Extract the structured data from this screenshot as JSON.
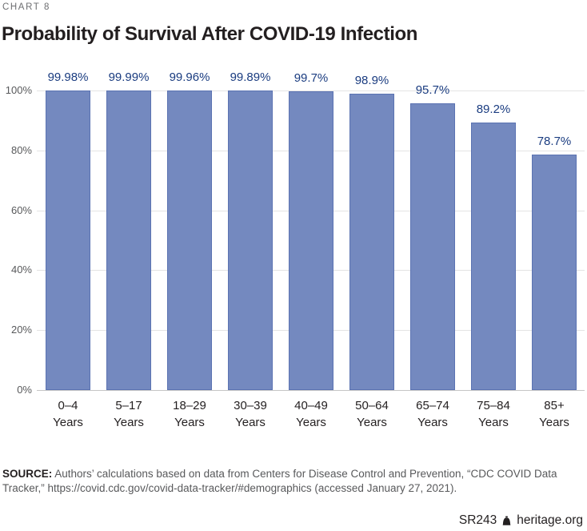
{
  "header": {
    "eyebrow": "CHART 8",
    "title": "Probability of Survival After COVID-19 Infection"
  },
  "chart_data": {
    "type": "bar",
    "title": "Probability of Survival After COVID-19 Infection",
    "categories": [
      "0–4",
      "5–17",
      "18–29",
      "30–39",
      "40–49",
      "50–64",
      "65–74",
      "75–84",
      "85+"
    ],
    "category_unit": "Years",
    "values": [
      99.98,
      99.99,
      99.96,
      99.89,
      99.7,
      98.9,
      95.7,
      89.2,
      78.7
    ],
    "value_labels": [
      "99.98%",
      "99.99%",
      "99.96%",
      "99.89%",
      "99.7%",
      "98.9%",
      "95.7%",
      "89.2%",
      "78.7%"
    ],
    "y_ticks": [
      0,
      20,
      40,
      60,
      80,
      100
    ],
    "y_tick_labels": [
      "0%",
      "20%",
      "40%",
      "60%",
      "80%",
      "100%"
    ],
    "ylim": [
      0,
      100
    ],
    "xlabel": "",
    "ylabel": "",
    "grid": "horizontal",
    "legend": "none"
  },
  "source": {
    "prefix": "SOURCE:",
    "lines": [
      " Authors’ calculations based on data from Centers for Disease Control and Prevention, “CDC COVID Data",
      "Tracker,” https://covid.cdc.gov/covid-data-tracker/#demographics (accessed January 27, 2021)."
    ]
  },
  "footer": {
    "report_id": "SR243",
    "site": "heritage.org",
    "logo": "heritage-bell-icon"
  },
  "colors": {
    "bar_fill": "#7489bf",
    "bar_border": "#5b73b2",
    "value_label": "#1a3c80",
    "gridline": "#e4e4e4",
    "baseline": "#c6c6c6",
    "axis_text": "#58595b",
    "eyebrow_text": "#6d6e71",
    "title_text": "#231f20",
    "source_text": "#58595b"
  }
}
